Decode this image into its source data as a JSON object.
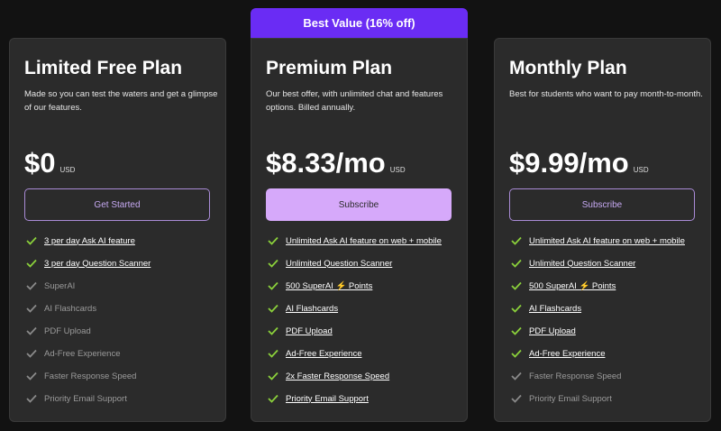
{
  "banner": "Best Value (16% off)",
  "plans": [
    {
      "name": "Limited Free Plan",
      "description": "Made so you can test the waters and get a glimpse of our features.",
      "price": "$0",
      "currency": "USD",
      "button": "Get Started",
      "featured": false,
      "features": [
        {
          "text": "3 per day Ask AI feature",
          "included": true
        },
        {
          "text": "3 per day Question Scanner",
          "included": true
        },
        {
          "text": "SuperAI",
          "included": false
        },
        {
          "text": "AI Flashcards",
          "included": false
        },
        {
          "text": "PDF Upload",
          "included": false
        },
        {
          "text": "Ad-Free Experience",
          "included": false
        },
        {
          "text": "Faster Response Speed",
          "included": false
        },
        {
          "text": "Priority Email Support",
          "included": false
        }
      ]
    },
    {
      "name": "Premium Plan",
      "description": "Our best offer, with unlimited chat and features options. Billed annually.",
      "price": "$8.33/mo",
      "currency": "USD",
      "button": "Subscribe",
      "featured": true,
      "features": [
        {
          "text": "Unlimited Ask AI feature on web + mobile",
          "included": true
        },
        {
          "text": "Unlimited Question Scanner",
          "included": true
        },
        {
          "text": "500 SuperAI ⚡ Points",
          "included": true
        },
        {
          "text": "AI Flashcards",
          "included": true
        },
        {
          "text": "PDF Upload",
          "included": true
        },
        {
          "text": "Ad-Free Experience",
          "included": true
        },
        {
          "text": "2x Faster Response Speed",
          "included": true
        },
        {
          "text": "Priority Email Support",
          "included": true
        }
      ]
    },
    {
      "name": "Monthly Plan",
      "description": "Best for students who want to pay month-to-month.",
      "price": "$9.99/mo",
      "currency": "USD",
      "button": "Subscribe",
      "featured": false,
      "features": [
        {
          "text": "Unlimited Ask AI feature on web + mobile",
          "included": true
        },
        {
          "text": "Unlimited Question Scanner",
          "included": true
        },
        {
          "text": "500 SuperAI ⚡ Points",
          "included": true
        },
        {
          "text": "AI Flashcards",
          "included": true
        },
        {
          "text": "PDF Upload",
          "included": true
        },
        {
          "text": "Ad-Free Experience",
          "included": true
        },
        {
          "text": "Faster Response Speed",
          "included": false
        },
        {
          "text": "Priority Email Support",
          "included": false
        }
      ]
    }
  ]
}
